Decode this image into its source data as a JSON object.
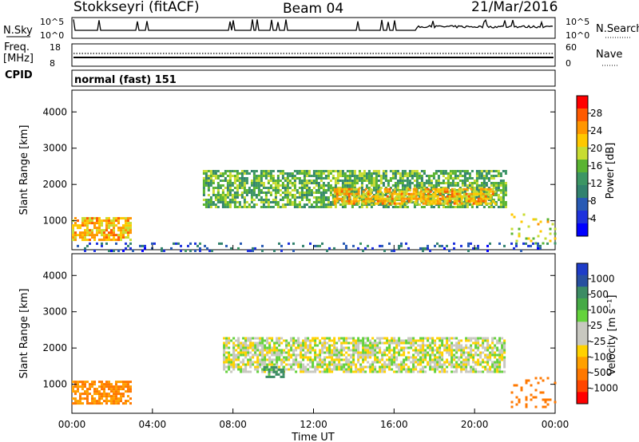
{
  "header": {
    "station": "Stokkseyri (fitACF)",
    "beam": "Beam 04",
    "date": "21/Mar/2016"
  },
  "strip_nsky": {
    "label": "N.Sky",
    "left_ticks": [
      "10^5",
      "10^0"
    ],
    "right_ticks": [
      "10^5",
      "10^0"
    ],
    "right_label": "N.Search"
  },
  "strip_freq": {
    "label_line1": "Freq.",
    "label_line2": "[MHz]",
    "left_ticks": [
      "18",
      "8"
    ],
    "right_ticks": [
      "60",
      "0"
    ],
    "right_label": "Nave"
  },
  "cpid": {
    "label": "CPID",
    "value": "normal (fast) 151"
  },
  "colorbars": {
    "power": {
      "label": "Power [dB]",
      "ticks": [
        "28",
        "24",
        "20",
        "16",
        "12",
        "8",
        "4"
      ],
      "colors": [
        "#ff0000",
        "#ff5a00",
        "#ff9600",
        "#ffc800",
        "#c8dc32",
        "#5ab432",
        "#3c9664",
        "#32826e",
        "#285ab4",
        "#1e32dc",
        "#0000ff"
      ]
    },
    "velocity": {
      "label": "Velocity [m s⁻¹]",
      "ticks": [
        "1000",
        "500",
        "100",
        "25",
        "-25",
        "-100",
        "-500",
        "-1000"
      ],
      "colors": [
        "#1e3cc8",
        "#2850a0",
        "#3c8c64",
        "#46aa46",
        "#64d23c",
        "#c8c8c0",
        "#c8c8c0",
        "#ffd200",
        "#ffa000",
        "#ff7800",
        "#ff4600",
        "#ff0000"
      ]
    }
  },
  "chart_data": [
    {
      "type": "heatmap",
      "panel": "power",
      "ylabel": "Slant Range [km]",
      "ylim": [
        200,
        4600
      ],
      "yticks": [
        "4000",
        "3000",
        "2000",
        "1000"
      ],
      "xlim_hours": [
        0,
        24
      ],
      "regions": [
        {
          "t0": 0.0,
          "t1": 2.9,
          "r0": 500,
          "r1": 1100,
          "db": 22
        },
        {
          "t0": 6.5,
          "t1": 21.5,
          "r0": 1350,
          "r1": 2400,
          "db": 14
        },
        {
          "t0": 13.0,
          "t1": 21.0,
          "r0": 1450,
          "r1": 1900,
          "db": 22
        },
        {
          "t0": 21.8,
          "t1": 24.0,
          "r0": 400,
          "r1": 1200,
          "db": 18
        },
        {
          "t0": 0.0,
          "t1": 24.0,
          "r0": 200,
          "r1": 400,
          "db": 6
        }
      ]
    },
    {
      "type": "heatmap",
      "panel": "velocity",
      "ylabel": "Slant Range [km]",
      "ylim": [
        200,
        4600
      ],
      "yticks": [
        "4000",
        "3000",
        "2000",
        "1000"
      ],
      "xlim_hours": [
        0,
        24
      ],
      "xticks": [
        "00:00",
        "04:00",
        "08:00",
        "12:00",
        "16:00",
        "20:00",
        "00:00"
      ],
      "xlabel": "Time UT",
      "regions": [
        {
          "t0": 0.0,
          "t1": 2.9,
          "r0": 450,
          "r1": 1100,
          "v": -300
        },
        {
          "t0": 7.5,
          "t1": 21.5,
          "r0": 1350,
          "r1": 2300,
          "v": 0
        },
        {
          "t0": 9.5,
          "t1": 10.5,
          "r0": 1200,
          "r1": 1500,
          "v": 150
        },
        {
          "t0": 21.8,
          "t1": 24.0,
          "r0": 400,
          "r1": 1200,
          "v": -400
        }
      ]
    }
  ]
}
